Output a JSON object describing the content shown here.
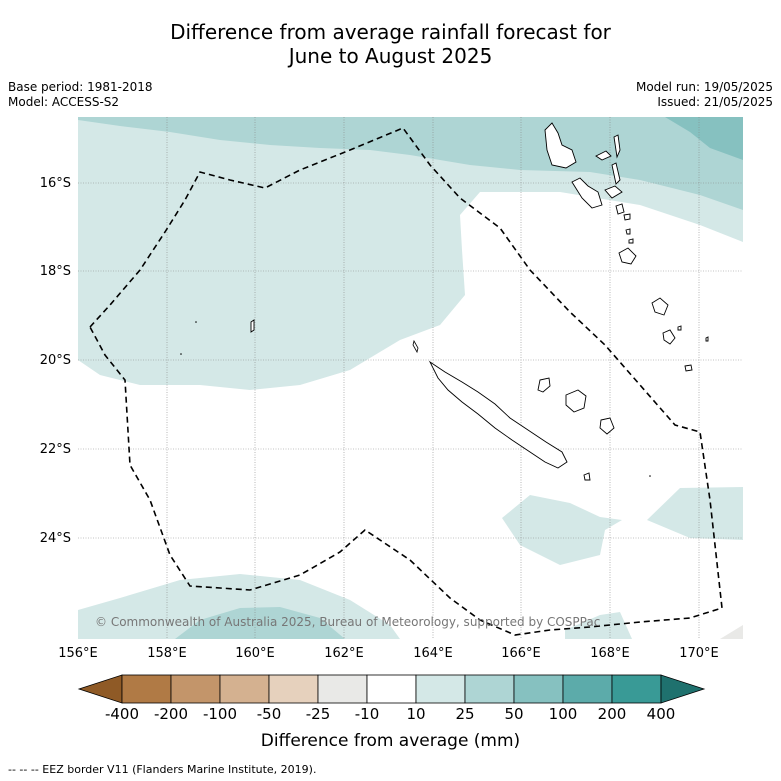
{
  "title_line1": "Difference from average rainfall forecast for",
  "title_line2": "June to August 2025",
  "base_period": "Base period: 1981-2018",
  "model": "Model: ACCESS-S2",
  "model_run": "Model run: 19/05/2025",
  "issued": "Issued: 21/05/2025",
  "copyright": "© Commonwealth of Australia 2025, Bureau of Meteorology, supported by COSPPac",
  "lat_labels": [
    "16°S",
    "18°S",
    "20°S",
    "22°S",
    "24°S"
  ],
  "lon_labels": [
    "156°E",
    "158°E",
    "160°E",
    "162°E",
    "164°E",
    "166°E",
    "168°E",
    "170°E"
  ],
  "colorbar": {
    "title": "Difference from average (mm)",
    "ticks": [
      "-400",
      "-200",
      "-100",
      "-50",
      "-25",
      "-10",
      "10",
      "25",
      "50",
      "100",
      "200",
      "400"
    ],
    "colors": [
      "#8f5a26",
      "#b07a45",
      "#c3956a",
      "#d4b190",
      "#e6d1bd",
      "#e9e9e7",
      "#ffffff",
      "#d4e8e7",
      "#aed5d4",
      "#86c1c0",
      "#5cabaa",
      "#399a96",
      "#1f716e"
    ]
  },
  "legend_footer": "--  --  -- EEZ border V11 (Flanders Marine Institute, 2019)."
}
